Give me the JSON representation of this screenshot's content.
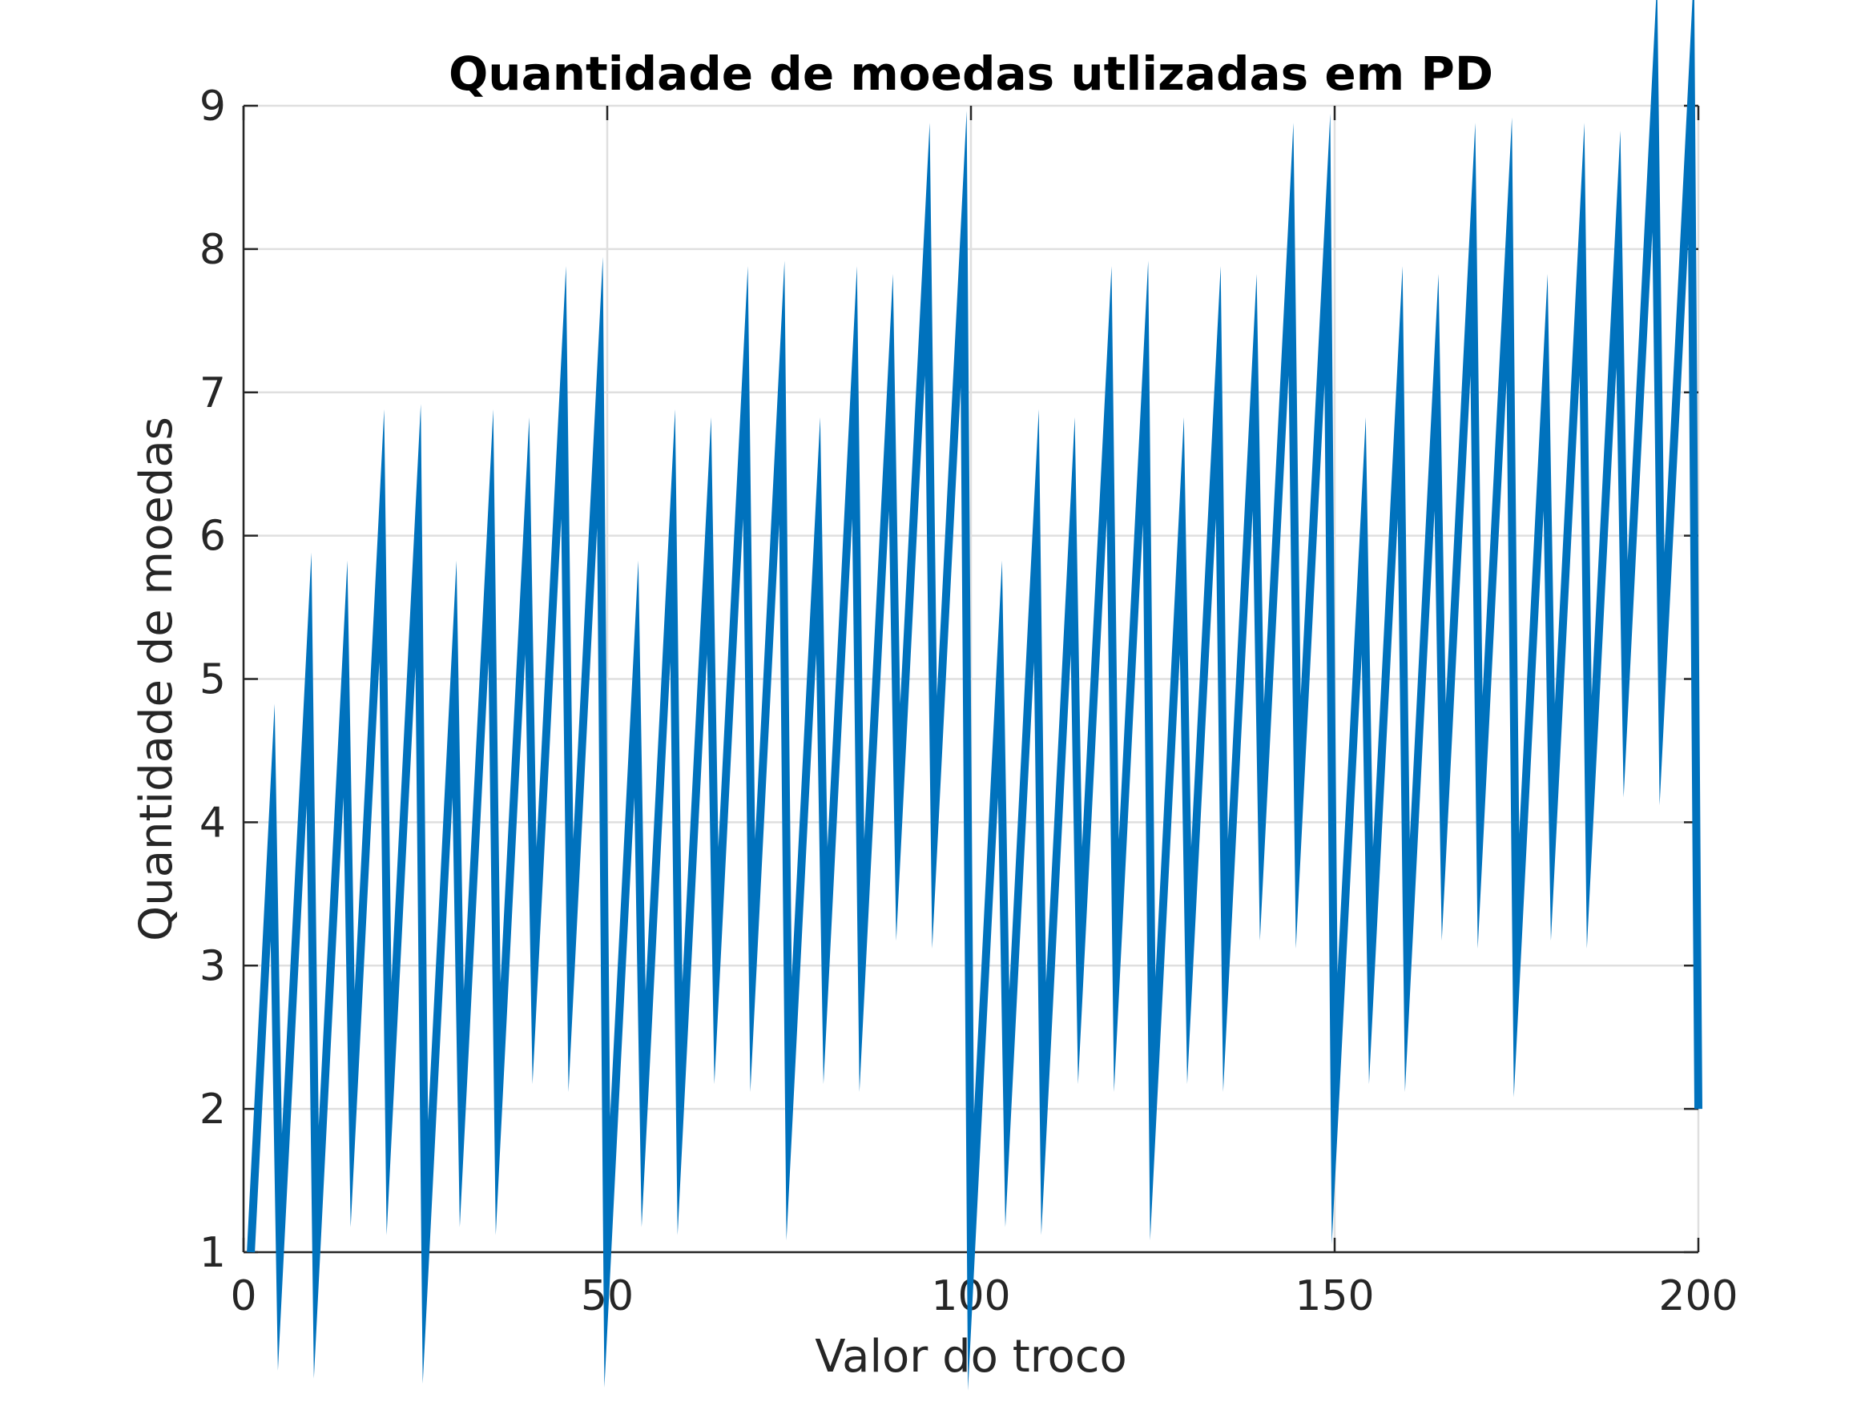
{
  "chart_data": {
    "type": "line",
    "title": "Quantidade de moedas utlizadas em PD",
    "xlabel": "Valor do troco",
    "ylabel": "Quantidade de moedas",
    "xlim": [
      0,
      200
    ],
    "ylim": [
      1,
      9
    ],
    "xticks": [
      0,
      50,
      100,
      150,
      200
    ],
    "yticks": [
      1,
      2,
      3,
      4,
      5,
      6,
      7,
      8,
      9
    ],
    "xtick_labels": [
      "0",
      "50",
      "100",
      "150",
      "200"
    ],
    "ytick_labels": [
      "1",
      "2",
      "3",
      "4",
      "5",
      "6",
      "7",
      "8",
      "9"
    ],
    "grid": true,
    "box": "open-top-right",
    "series": [
      {
        "color": "#0072bd",
        "x": [
          1,
          4,
          5,
          9,
          10,
          14,
          15,
          19,
          20,
          24,
          25,
          29,
          30,
          34,
          35,
          39,
          40,
          44,
          45,
          49,
          50,
          54,
          55,
          59,
          60,
          64,
          65,
          69,
          70,
          74,
          75,
          79,
          80,
          84,
          85,
          89,
          90,
          94,
          95,
          99,
          100,
          104,
          105,
          109,
          110,
          114,
          115,
          119,
          120,
          124,
          125,
          129,
          130,
          134,
          135,
          139,
          140,
          144,
          145,
          149,
          150,
          154,
          155,
          159,
          160,
          164,
          165,
          169,
          170,
          174,
          175,
          179,
          180,
          184,
          185,
          189,
          190,
          194,
          195,
          199,
          200
        ],
        "y": [
          1,
          4,
          1,
          5,
          1,
          5,
          2,
          6,
          2,
          6,
          1,
          5,
          2,
          6,
          2,
          6,
          3,
          7,
          3,
          7,
          1,
          5,
          2,
          6,
          2,
          6,
          3,
          7,
          3,
          7,
          2,
          6,
          3,
          7,
          3,
          7,
          4,
          8,
          4,
          8,
          1,
          5,
          2,
          6,
          2,
          6,
          3,
          7,
          3,
          7,
          2,
          6,
          3,
          7,
          3,
          7,
          4,
          8,
          4,
          8,
          2,
          6,
          3,
          7,
          3,
          7,
          4,
          8,
          4,
          8,
          3,
          7,
          4,
          8,
          4,
          8,
          5,
          9,
          5,
          9,
          2
        ]
      }
    ]
  }
}
